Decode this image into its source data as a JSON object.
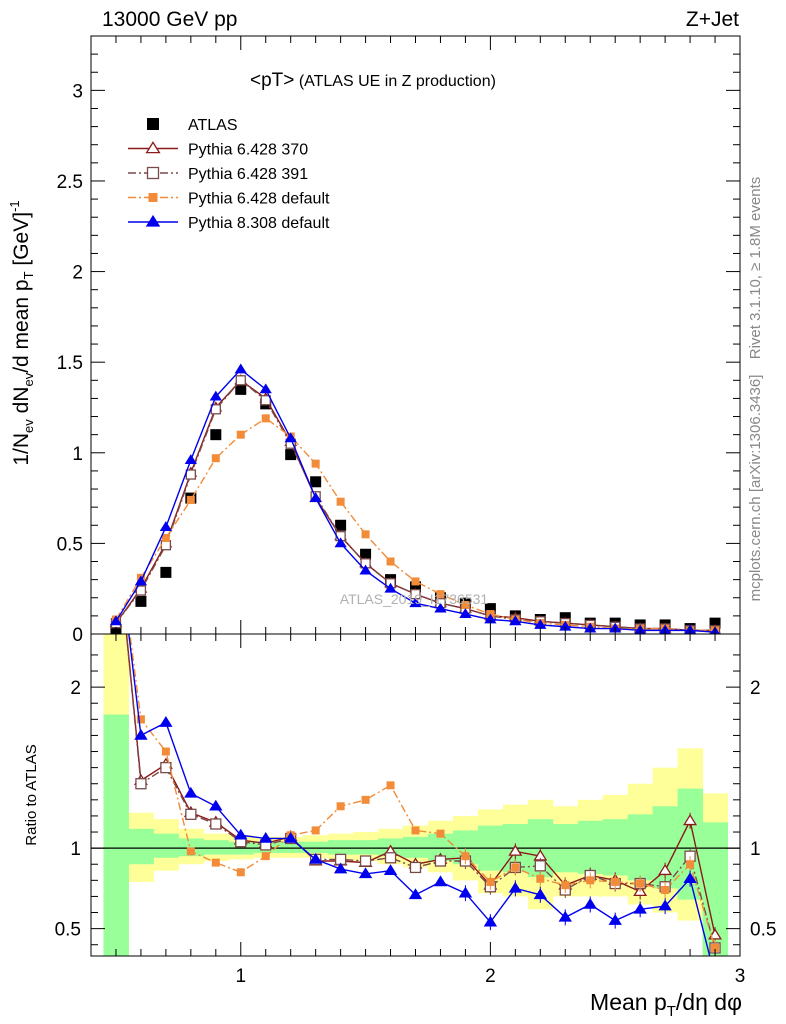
{
  "header": {
    "left": "13000 GeV pp",
    "right": "Z+Jet"
  },
  "side_labels": {
    "rivet": "Rivet 3.1.10, ≥ 1.8M events",
    "mcplots": "mcplots.cern.ch [arXiv:1306.3436]"
  },
  "watermark": "ATLAS_2019_I1736531",
  "chart_data": [
    {
      "type": "scatter",
      "panel": "main",
      "title_main": "<pT>",
      "title_sub": " (ATLAS UE in Z production)",
      "ylabel": "1/N_ev dN_ev/d mean p_T [GeV]^-1",
      "xlim": [
        0.4,
        3.0
      ],
      "ylim": [
        0,
        3.3
      ],
      "yticks": [
        0,
        0.5,
        1,
        1.5,
        2,
        2.5,
        3
      ],
      "ytick_labels": [
        "0",
        "0.5",
        "1",
        "1.5",
        "2",
        "2.5",
        "3"
      ],
      "legend_position": "top-left",
      "x": [
        0.5,
        0.6,
        0.7,
        0.8,
        0.9,
        1.0,
        1.1,
        1.2,
        1.3,
        1.4,
        1.5,
        1.6,
        1.7,
        1.8,
        1.9,
        2.0,
        2.1,
        2.2,
        2.3,
        2.4,
        2.5,
        2.6,
        2.7,
        2.8,
        2.9
      ],
      "series": [
        {
          "name": "ATLAS",
          "color": "#000000",
          "marker": "square",
          "line": "none",
          "values": [
            0.02,
            0.18,
            0.34,
            0.75,
            1.1,
            1.35,
            1.27,
            0.99,
            0.84,
            0.6,
            0.44,
            0.3,
            0.26,
            0.2,
            0.17,
            0.14,
            0.1,
            0.08,
            0.09,
            0.06,
            0.06,
            0.05,
            0.05,
            0.03,
            0.06
          ]
        },
        {
          "name": "Pythia 6.428 370",
          "color": "#8b1a1a",
          "marker": "triangle-open",
          "line": "solid",
          "values": [
            0.06,
            0.25,
            0.5,
            0.89,
            1.25,
            1.4,
            1.3,
            1.06,
            0.75,
            0.54,
            0.39,
            0.28,
            0.22,
            0.17,
            0.14,
            0.1,
            0.09,
            0.07,
            0.06,
            0.05,
            0.04,
            0.03,
            0.03,
            0.02,
            0.02
          ]
        },
        {
          "name": "Pythia 6.428 391",
          "color": "#7a4a4a",
          "marker": "square-open",
          "line": "dashdot",
          "values": [
            0.06,
            0.24,
            0.49,
            0.88,
            1.24,
            1.4,
            1.29,
            1.05,
            0.76,
            0.54,
            0.39,
            0.28,
            0.22,
            0.17,
            0.14,
            0.1,
            0.08,
            0.07,
            0.06,
            0.05,
            0.04,
            0.03,
            0.03,
            0.02,
            0.02
          ]
        },
        {
          "name": "Pythia 6.428 default",
          "color": "#f28c38",
          "marker": "square",
          "line": "dashdot",
          "values": [
            0.08,
            0.31,
            0.53,
            0.74,
            0.97,
            1.1,
            1.19,
            1.09,
            0.94,
            0.73,
            0.55,
            0.4,
            0.29,
            0.22,
            0.16,
            0.11,
            0.08,
            0.06,
            0.05,
            0.04,
            0.03,
            0.03,
            0.03,
            0.02,
            0.02
          ]
        },
        {
          "name": "Pythia 8.308 default",
          "color": "#0000ee",
          "marker": "triangle",
          "line": "solid",
          "values": [
            0.07,
            0.29,
            0.59,
            0.96,
            1.31,
            1.46,
            1.35,
            1.08,
            0.75,
            0.5,
            0.35,
            0.25,
            0.17,
            0.14,
            0.11,
            0.08,
            0.07,
            0.05,
            0.04,
            0.03,
            0.03,
            0.02,
            0.02,
            0.02,
            0.01
          ]
        }
      ]
    },
    {
      "type": "line",
      "panel": "ratio",
      "ylabel": "Ratio to ATLAS",
      "xlabel": "Mean p_T/dη dφ",
      "xlim": [
        0.4,
        3.0
      ],
      "ylim": [
        0.33,
        2.33
      ],
      "xticks": [
        1,
        2,
        3
      ],
      "xtick_labels": [
        "1",
        "2",
        "3"
      ],
      "yticks": [
        0.5,
        1,
        2
      ],
      "ytick_labels": [
        "0.5",
        "1",
        "2"
      ],
      "reference_line": 1,
      "x": [
        0.5,
        0.6,
        0.7,
        0.8,
        0.9,
        1.0,
        1.1,
        1.2,
        1.3,
        1.4,
        1.5,
        1.6,
        1.7,
        1.8,
        1.9,
        2.0,
        2.1,
        2.2,
        2.3,
        2.4,
        2.5,
        2.6,
        2.7,
        2.8,
        2.9
      ],
      "bin_edges": [
        0.45,
        0.55,
        0.65,
        0.75,
        0.85,
        0.95,
        1.05,
        1.15,
        1.25,
        1.35,
        1.45,
        1.55,
        1.65,
        1.75,
        1.85,
        1.95,
        2.05,
        2.15,
        2.25,
        2.35,
        2.45,
        2.55,
        2.65,
        2.75,
        2.85,
        2.95
      ],
      "band_yellow": {
        "color": "#ffff99",
        "low": [
          0.33,
          0.79,
          0.86,
          0.9,
          0.92,
          0.93,
          0.94,
          0.94,
          0.94,
          0.93,
          0.92,
          0.9,
          0.88,
          0.85,
          0.8,
          0.72,
          0.7,
          0.62,
          0.7,
          0.7,
          0.7,
          0.65,
          0.6,
          0.55,
          0.33
        ],
        "high": [
          2.33,
          1.22,
          1.18,
          1.12,
          1.09,
          1.08,
          1.07,
          1.07,
          1.08,
          1.09,
          1.1,
          1.12,
          1.14,
          1.17,
          1.2,
          1.24,
          1.27,
          1.3,
          1.26,
          1.3,
          1.33,
          1.4,
          1.5,
          1.62,
          1.34
        ]
      },
      "band_green": {
        "color": "#99ff99",
        "low": [
          0.33,
          0.9,
          0.94,
          0.95,
          0.96,
          0.96,
          0.97,
          0.97,
          0.97,
          0.96,
          0.96,
          0.95,
          0.94,
          0.92,
          0.9,
          0.86,
          0.85,
          0.82,
          0.85,
          0.84,
          0.83,
          0.8,
          0.75,
          0.68,
          0.33
        ],
        "high": [
          1.83,
          1.12,
          1.09,
          1.06,
          1.05,
          1.04,
          1.04,
          1.04,
          1.04,
          1.05,
          1.05,
          1.06,
          1.07,
          1.09,
          1.11,
          1.14,
          1.15,
          1.18,
          1.15,
          1.17,
          1.18,
          1.21,
          1.26,
          1.37,
          1.16
        ]
      },
      "series": [
        {
          "name": "Pythia 6.428 370",
          "color": "#8b1a1a",
          "marker": "triangle-open",
          "line": "solid",
          "values": [
            3.0,
            1.42,
            1.52,
            1.22,
            1.16,
            1.05,
            1.03,
            1.07,
            0.92,
            0.92,
            0.91,
            0.98,
            0.9,
            0.93,
            0.94,
            0.77,
            0.98,
            0.95,
            0.77,
            0.83,
            0.8,
            0.73,
            0.86,
            1.17,
            0.46
          ]
        },
        {
          "name": "Pythia 6.428 391",
          "color": "#7a4a4a",
          "marker": "square-open",
          "line": "dashdot",
          "values": [
            3.0,
            1.4,
            1.5,
            1.21,
            1.15,
            1.04,
            1.02,
            1.06,
            0.93,
            0.93,
            0.92,
            0.94,
            0.88,
            0.92,
            0.92,
            0.76,
            0.88,
            0.89,
            0.74,
            0.83,
            0.78,
            0.78,
            0.76,
            0.95,
            0.38
          ]
        },
        {
          "name": "Pythia 6.428 default",
          "color": "#f28c38",
          "marker": "square",
          "line": "dashdot",
          "values": [
            3.0,
            1.8,
            1.6,
            0.98,
            0.91,
            0.85,
            0.95,
            1.08,
            1.11,
            1.26,
            1.3,
            1.39,
            1.11,
            1.09,
            0.95,
            0.79,
            0.88,
            0.81,
            0.77,
            0.8,
            0.79,
            0.78,
            0.74,
            0.9,
            0.38
          ]
        },
        {
          "name": "Pythia 8.308 default",
          "color": "#0000ee",
          "marker": "triangle",
          "line": "solid",
          "values": [
            3.0,
            1.7,
            1.78,
            1.34,
            1.26,
            1.08,
            1.06,
            1.06,
            0.93,
            0.87,
            0.84,
            0.86,
            0.71,
            0.79,
            0.72,
            0.54,
            0.75,
            0.71,
            0.57,
            0.65,
            0.55,
            0.62,
            0.64,
            0.81,
            0.2
          ]
        }
      ]
    }
  ]
}
